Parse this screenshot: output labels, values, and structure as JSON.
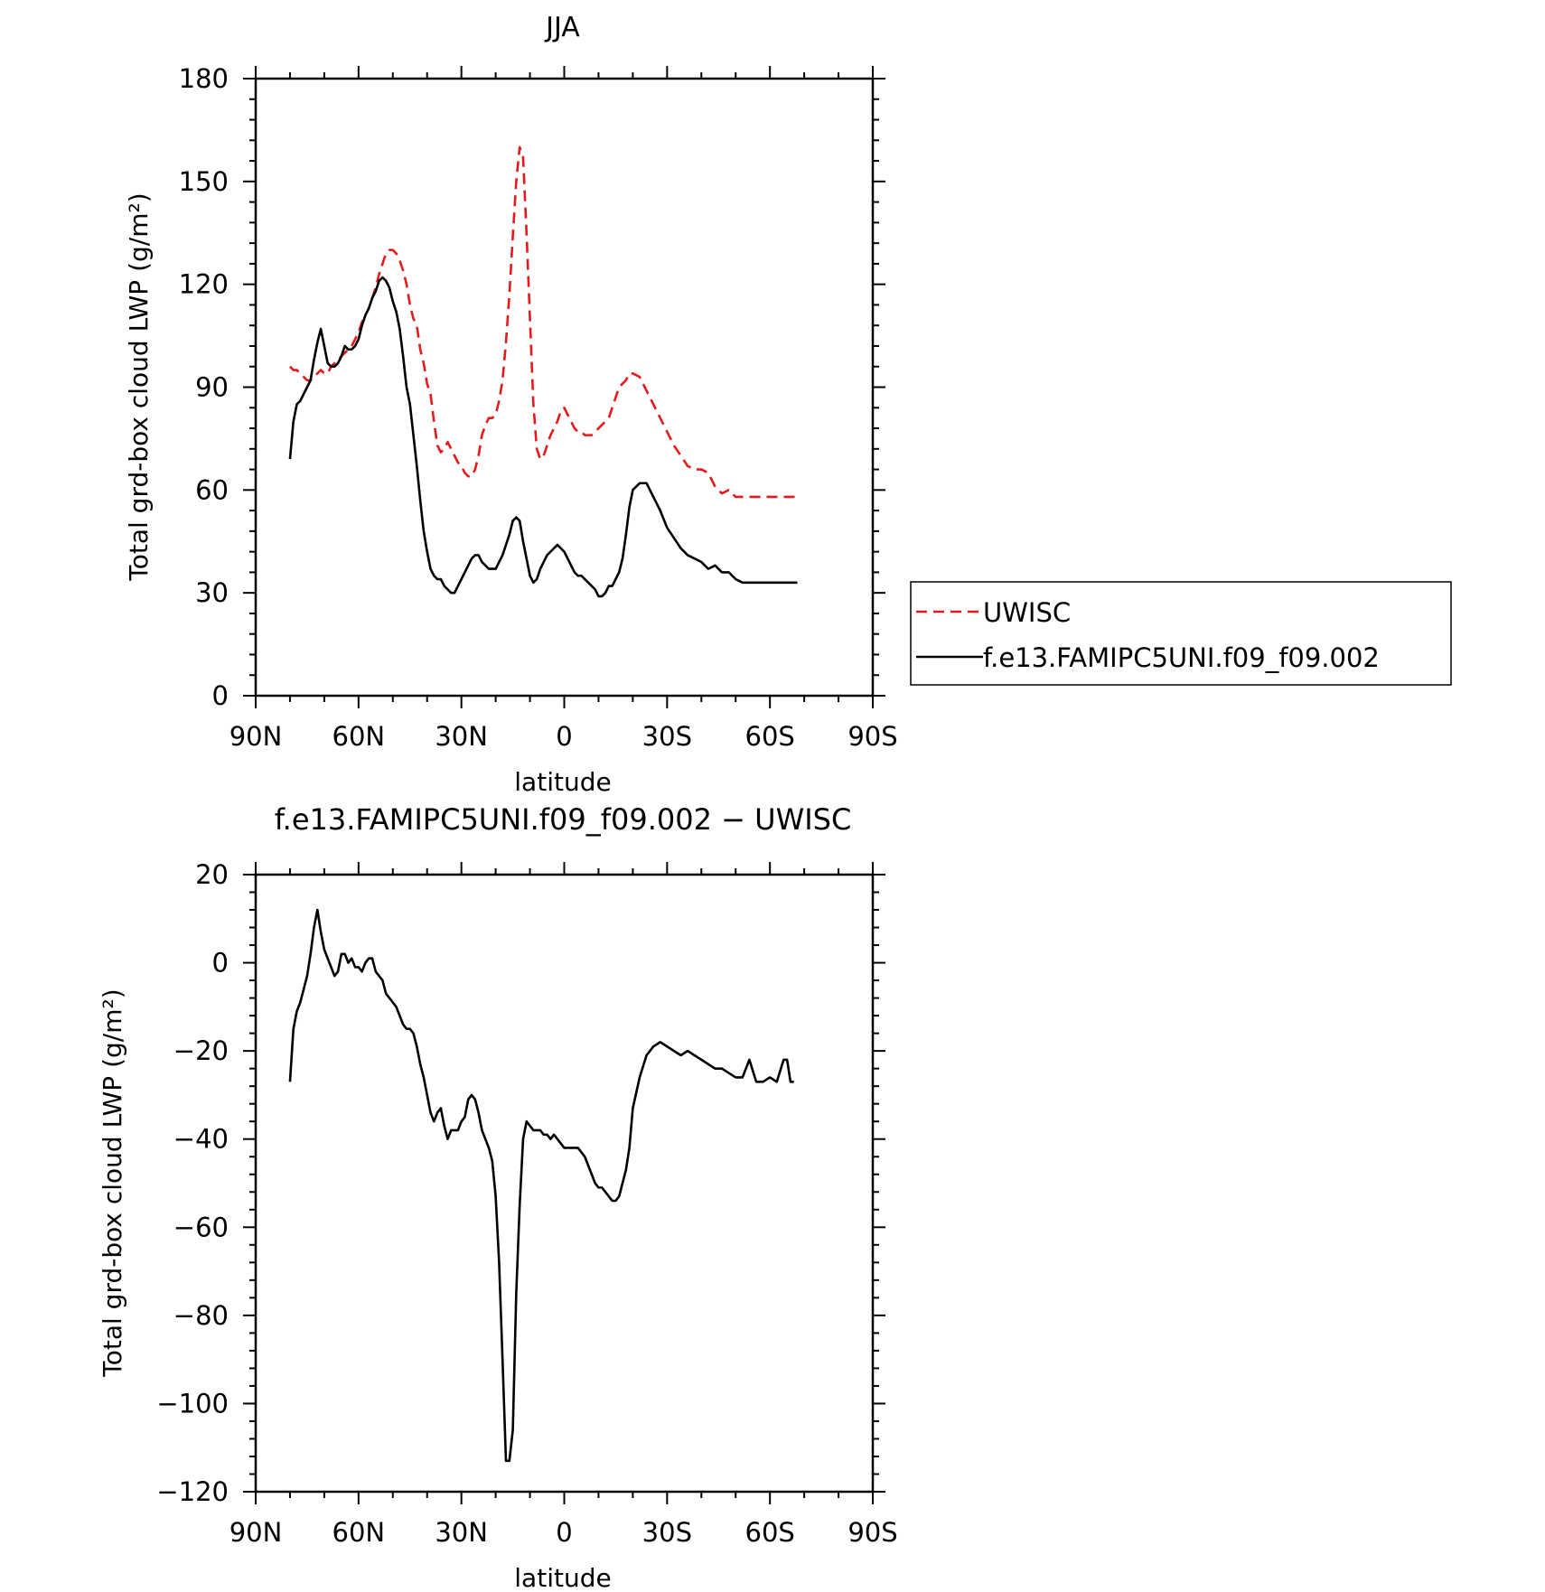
{
  "chart_data": [
    {
      "type": "line",
      "title": "JJA",
      "xlabel": "latitude",
      "ylabel": "Total grd-box cloud LWP (g/m²)",
      "xlim": [
        90,
        -90
      ],
      "ylim": [
        0,
        180
      ],
      "x_ticks": [
        {
          "value": 90,
          "label": "90N"
        },
        {
          "value": 60,
          "label": "60N"
        },
        {
          "value": 30,
          "label": "30N"
        },
        {
          "value": 0,
          "label": "0"
        },
        {
          "value": -30,
          "label": "30S"
        },
        {
          "value": -60,
          "label": "60S"
        },
        {
          "value": -90,
          "label": "90S"
        }
      ],
      "y_ticks": [
        0,
        30,
        60,
        90,
        120,
        150,
        180
      ],
      "legend_position": "right",
      "series": [
        {
          "name": "UWISC",
          "color": "#e41a1c",
          "dash": "dashed",
          "x": [
            80,
            79,
            78,
            77,
            76,
            75,
            74,
            73,
            72,
            71,
            70,
            69,
            68,
            67,
            66,
            65,
            64,
            63,
            62,
            61,
            60,
            59,
            58,
            57,
            56,
            55,
            54,
            53,
            52,
            51,
            50,
            49,
            48,
            47,
            46,
            45,
            44,
            43,
            42,
            41,
            40,
            39,
            38,
            37,
            36,
            35,
            34,
            33,
            32,
            31,
            30,
            29,
            28,
            27,
            26,
            25,
            24,
            23,
            22,
            21,
            20,
            19,
            18,
            17,
            16,
            15,
            14,
            13,
            12,
            11,
            10,
            9,
            8,
            7,
            6,
            5,
            4,
            3,
            2,
            1,
            0,
            -1,
            -2,
            -3,
            -4,
            -5,
            -6,
            -7,
            -8,
            -9,
            -10,
            -11,
            -12,
            -13,
            -14,
            -15,
            -16,
            -17,
            -18,
            -19,
            -20,
            -22,
            -24,
            -26,
            -28,
            -30,
            -32,
            -34,
            -36,
            -38,
            -40,
            -42,
            -44,
            -46,
            -48,
            -50,
            -52,
            -54,
            -56,
            -58,
            -60,
            -62,
            -64,
            -65,
            -66,
            -67,
            -68
          ],
          "y": [
            96,
            95,
            95,
            94,
            93,
            92,
            92,
            93,
            94,
            95,
            94,
            94,
            96,
            97,
            98,
            99,
            100,
            101,
            102,
            104,
            106,
            109,
            111,
            113,
            116,
            119,
            123,
            126,
            129,
            130,
            130,
            129,
            127,
            124,
            120,
            114,
            110,
            108,
            101,
            97,
            91,
            88,
            80,
            73,
            71,
            72,
            74,
            72,
            70,
            68,
            67,
            65,
            64,
            64,
            66,
            70,
            76,
            79,
            81,
            81,
            82,
            86,
            92,
            103,
            117,
            134,
            150,
            160,
            157,
            135,
            110,
            85,
            72,
            69,
            70,
            73,
            76,
            78,
            80,
            83,
            84,
            82,
            80,
            78,
            77,
            77,
            76,
            76,
            76,
            77,
            78,
            79,
            80,
            81,
            84,
            87,
            90,
            91,
            92,
            94,
            94,
            93,
            89,
            85,
            81,
            77,
            73,
            70,
            67,
            66,
            66,
            65,
            61,
            59,
            60,
            58,
            58,
            58,
            58,
            58,
            58,
            58,
            58,
            58,
            58,
            58,
            58
          ]
        },
        {
          "name": "f.e13.FAMIPC5UNI.f09_f09.002",
          "color": "#000000",
          "dash": "solid",
          "x": [
            80,
            79,
            78,
            77,
            76,
            75,
            74,
            73,
            72,
            71,
            70,
            69,
            68,
            67,
            66,
            65,
            64,
            63,
            62,
            61,
            60,
            59,
            58,
            57,
            56,
            55,
            54,
            53,
            52,
            51,
            50,
            49,
            48,
            47,
            46,
            45,
            44,
            43,
            42,
            41,
            40,
            39,
            38,
            37,
            36,
            35,
            34,
            33,
            32,
            31,
            30,
            29,
            28,
            27,
            26,
            25,
            24,
            23,
            22,
            21,
            20,
            19,
            18,
            17,
            16,
            15,
            14,
            13,
            12,
            11,
            10,
            9,
            8,
            7,
            6,
            5,
            4,
            3,
            2,
            1,
            0,
            -1,
            -2,
            -3,
            -4,
            -5,
            -6,
            -7,
            -8,
            -9,
            -10,
            -11,
            -12,
            -13,
            -14,
            -15,
            -16,
            -17,
            -18,
            -19,
            -20,
            -22,
            -24,
            -26,
            -28,
            -30,
            -32,
            -34,
            -36,
            -38,
            -40,
            -42,
            -44,
            -46,
            -48,
            -50,
            -52,
            -54,
            -56,
            -58,
            -60,
            -62,
            -64,
            -65,
            -66,
            -67,
            -68
          ],
          "y": [
            69,
            80,
            85,
            86,
            88,
            90,
            92,
            98,
            103,
            107,
            102,
            97,
            96,
            96,
            97,
            99,
            102,
            101,
            101,
            102,
            104,
            108,
            111,
            113,
            116,
            118,
            121,
            122,
            121,
            119,
            115,
            112,
            107,
            99,
            90,
            85,
            76,
            67,
            57,
            48,
            42,
            37,
            35,
            34,
            34,
            32,
            31,
            30,
            30,
            32,
            34,
            36,
            38,
            40,
            41,
            41,
            39,
            38,
            37,
            37,
            37,
            39,
            41,
            44,
            47,
            51,
            52,
            51,
            45,
            40,
            35,
            33,
            34,
            37,
            39,
            41,
            42,
            43,
            44,
            43,
            42,
            40,
            38,
            36,
            35,
            35,
            34,
            33,
            32,
            31,
            29,
            29,
            30,
            32,
            32,
            34,
            36,
            40,
            47,
            55,
            60,
            62,
            62,
            58,
            54,
            49,
            46,
            43,
            41,
            40,
            39,
            37,
            38,
            36,
            36,
            34,
            33,
            33,
            33,
            33,
            33,
            33,
            33,
            33,
            33,
            33,
            33
          ]
        }
      ]
    },
    {
      "type": "line",
      "title": "f.e13.FAMIPC5UNI.f09_f09.002 − UWISC",
      "xlabel": "latitude",
      "ylabel": "Total grd-box cloud LWP (g/m²)",
      "xlim": [
        90,
        -90
      ],
      "ylim": [
        -120,
        20
      ],
      "x_ticks": [
        {
          "value": 90,
          "label": "90N"
        },
        {
          "value": 60,
          "label": "60N"
        },
        {
          "value": 30,
          "label": "30N"
        },
        {
          "value": 0,
          "label": "0"
        },
        {
          "value": -30,
          "label": "30S"
        },
        {
          "value": -60,
          "label": "60S"
        },
        {
          "value": -90,
          "label": "90S"
        }
      ],
      "y_ticks": [
        20,
        0,
        -20,
        -40,
        -60,
        -80,
        -100,
        -120
      ],
      "series": [
        {
          "color": "#000000",
          "dash": "solid",
          "x": [
            80,
            79,
            78,
            77,
            76,
            75,
            74,
            73,
            72,
            71,
            70,
            69,
            68,
            67,
            66,
            65,
            64,
            63,
            62,
            61,
            60,
            59,
            58,
            57,
            56,
            55,
            54,
            53,
            52,
            51,
            50,
            49,
            48,
            47,
            46,
            45,
            44,
            43,
            42,
            41,
            40,
            39,
            38,
            37,
            36,
            35,
            34,
            33,
            32,
            31,
            30,
            29,
            28,
            27,
            26,
            25,
            24,
            23,
            22,
            21,
            20,
            19,
            18,
            17,
            16,
            15,
            14,
            13,
            12,
            11,
            10,
            9,
            8,
            7,
            6,
            5,
            4,
            3,
            2,
            1,
            0,
            -1,
            -2,
            -3,
            -4,
            -5,
            -6,
            -7,
            -8,
            -9,
            -10,
            -11,
            -12,
            -13,
            -14,
            -15,
            -16,
            -17,
            -18,
            -19,
            -20,
            -22,
            -24,
            -26,
            -28,
            -30,
            -32,
            -34,
            -36,
            -38,
            -40,
            -42,
            -44,
            -46,
            -48,
            -50,
            -52,
            -54,
            -56,
            -58,
            -60,
            -62,
            -64,
            -65,
            -66,
            -67
          ],
          "y": [
            -27,
            -15,
            -11,
            -9,
            -6,
            -3,
            2,
            8,
            12,
            7,
            3,
            1,
            -1,
            -3,
            -2,
            2,
            2,
            0,
            1,
            -1,
            -1,
            -2,
            0,
            1,
            1,
            -2,
            -3,
            -4,
            -7,
            -8,
            -9,
            -10,
            -12,
            -14,
            -15,
            -15,
            -16,
            -19,
            -23,
            -26,
            -30,
            -34,
            -36,
            -34,
            -33,
            -37,
            -40,
            -38,
            -38,
            -38,
            -36,
            -35,
            -31,
            -30,
            -31,
            -34,
            -38,
            -40,
            -42,
            -45,
            -53,
            -68,
            -90,
            -113,
            -113,
            -106,
            -75,
            -55,
            -40,
            -36,
            -37,
            -38,
            -38,
            -38,
            -39,
            -39,
            -40,
            -39,
            -40,
            -41,
            -42,
            -42,
            -42,
            -42,
            -42,
            -43,
            -44,
            -46,
            -48,
            -50,
            -51,
            -51,
            -52,
            -53,
            -54,
            -54,
            -53,
            -50,
            -47,
            -42,
            -33,
            -26,
            -21,
            -19,
            -18,
            -19,
            -20,
            -21,
            -20,
            -21,
            -22,
            -23,
            -24,
            -24,
            -25,
            -26,
            -26,
            -22,
            -27,
            -27,
            -26,
            -27,
            -22,
            -22,
            -27,
            -27
          ]
        }
      ]
    }
  ],
  "legend": {
    "items": [
      "UWISC",
      "f.e13.FAMIPC5UNI.f09_f09.002"
    ]
  }
}
